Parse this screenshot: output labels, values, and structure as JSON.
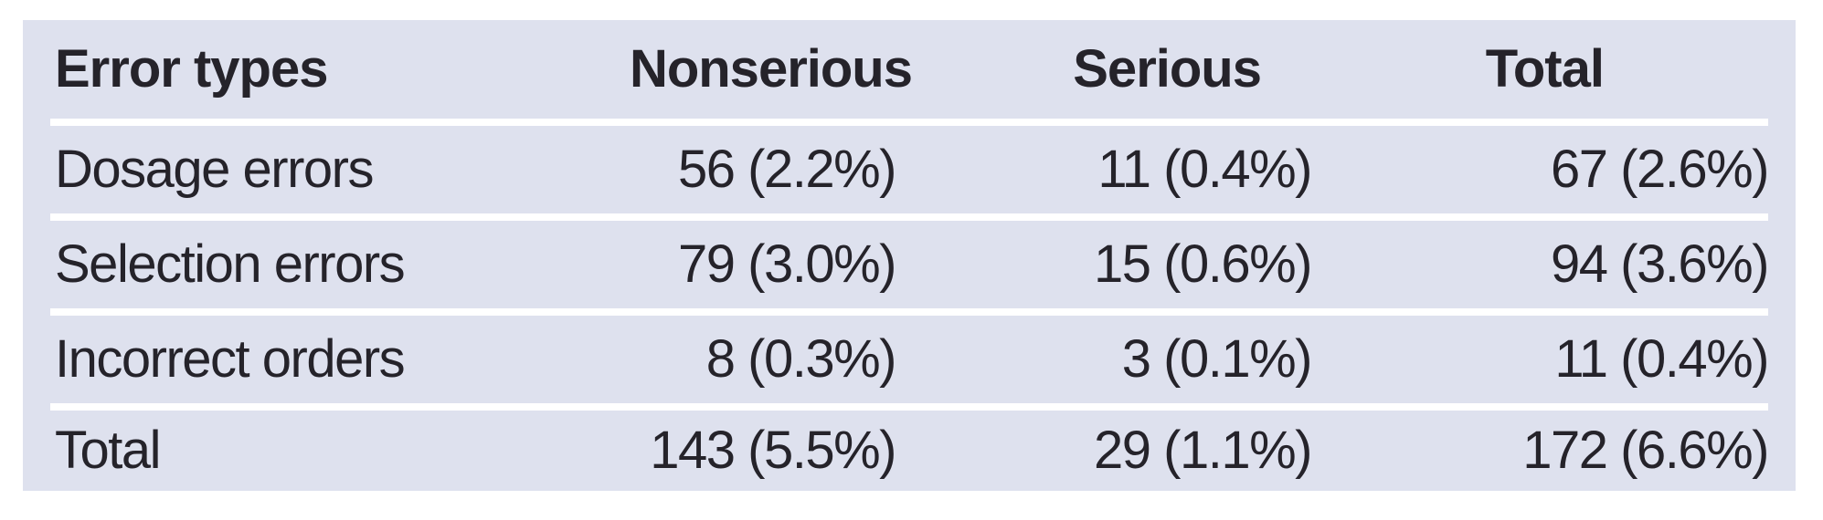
{
  "table": {
    "background_color": "#dee1ee",
    "separator_color": "#ffffff",
    "text_color": "#25232a",
    "columns": {
      "error_types": "Error types",
      "nonserious": "Nonserious",
      "serious": "Serious",
      "total": "Total"
    },
    "rows": [
      {
        "label": "Dosage errors",
        "nonserious": "56 (2.2%)",
        "serious": "11 (0.4%)",
        "total": "67 (2.6%)"
      },
      {
        "label": "Selection errors",
        "nonserious": "79 (3.0%)",
        "serious": "15 (0.6%)",
        "total": "94 (3.6%)"
      },
      {
        "label": "Incorrect orders",
        "nonserious": "8 (0.3%)",
        "serious": "3 (0.1%)",
        "total": "11 (0.4%)"
      },
      {
        "label": "Total",
        "nonserious": "143 (5.5%)",
        "serious": "29 (1.1%)",
        "total": "172 (6.6%)"
      }
    ]
  },
  "chart_data": {
    "type": "table",
    "title": "",
    "columns": [
      "Error types",
      "Nonserious",
      "Serious",
      "Total"
    ],
    "rows": [
      [
        "Dosage errors",
        "56 (2.2%)",
        "11 (0.4%)",
        "67 (2.6%)"
      ],
      [
        "Selection errors",
        "79 (3.0%)",
        "15 (0.6%)",
        "94 (3.6%)"
      ],
      [
        "Incorrect orders",
        "8 (0.3%)",
        "3 (0.1%)",
        "11 (0.4%)"
      ],
      [
        "Total",
        "143 (5.5%)",
        "29 (1.1%)",
        "172 (6.6%)"
      ]
    ]
  }
}
